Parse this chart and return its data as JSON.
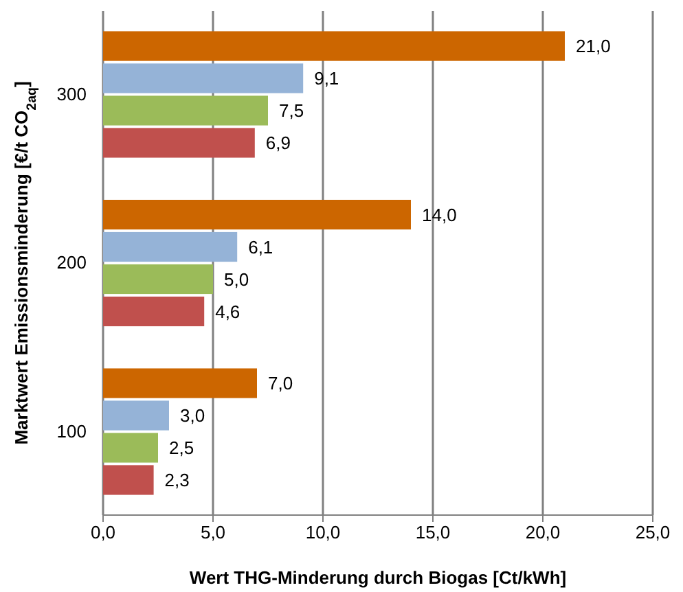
{
  "chart_data": {
    "type": "bar",
    "orientation": "horizontal",
    "categories": [
      "300",
      "200",
      "100"
    ],
    "series": [
      {
        "color": "#cc6600",
        "values": [
          21.0,
          14.0,
          7.0
        ],
        "value_labels": [
          "21,0",
          "14,0",
          "7,0"
        ]
      },
      {
        "color": "#95b3d7",
        "values": [
          9.1,
          6.1,
          3.0
        ],
        "value_labels": [
          "9,1",
          "6,1",
          "3,0"
        ]
      },
      {
        "color": "#9bbb59",
        "values": [
          7.5,
          5.0,
          2.5
        ],
        "value_labels": [
          "7,5",
          "5,0",
          "2,5"
        ]
      },
      {
        "color": "#c0504d",
        "values": [
          6.9,
          4.6,
          2.3
        ],
        "value_labels": [
          "6,9",
          "4,6",
          "2,3"
        ]
      }
    ],
    "xlim": [
      0,
      25
    ],
    "xticks": [
      {
        "value": 0,
        "label": "0,0"
      },
      {
        "value": 5,
        "label": "5,0"
      },
      {
        "value": 10,
        "label": "10,0"
      },
      {
        "value": 15,
        "label": "15,0"
      },
      {
        "value": 20,
        "label": "20,0"
      },
      {
        "value": 25,
        "label": "25,0"
      }
    ],
    "xlabel": "Wert THG-Minderung durch Biogas [Ct/kWh]",
    "ylabel": "Marktwert Emissionsminderung [€/t CO$_{2aq}$]",
    "grid": "x"
  }
}
